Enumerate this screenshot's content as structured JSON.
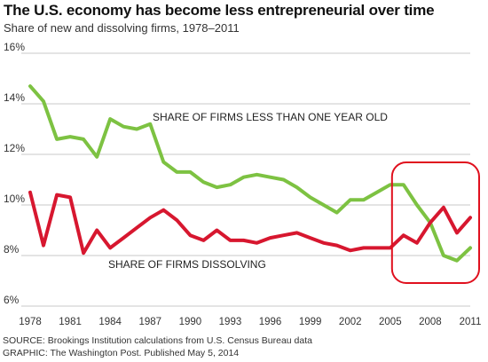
{
  "title": "The U.S. economy has become less entrepreneurial over time",
  "subtitle": "Share of new and dissolving firms, 1978–2011",
  "source": "SOURCE: Brookings Institution calculations from U.S. Census Bureau data",
  "credit": "GRAPHIC: The Washington Post. Published May 5, 2014",
  "colors": {
    "new_firms": "#7dc242",
    "dissolving": "#d7172f",
    "highlight": "#e0101e",
    "grid": "#c8c8c8"
  },
  "chart_data": {
    "type": "line",
    "xlim": [
      1978,
      2011
    ],
    "ylim": [
      6,
      16
    ],
    "grid": true,
    "x_ticks": [
      1978,
      1981,
      1984,
      1987,
      1990,
      1993,
      1996,
      1999,
      2002,
      2005,
      2008,
      2011
    ],
    "y_ticks": [
      6,
      8,
      10,
      12,
      14,
      16
    ],
    "y_tick_labels": [
      "6%",
      "8%",
      "10%",
      "12%",
      "14%",
      "16%"
    ],
    "x": [
      1978,
      1979,
      1980,
      1981,
      1982,
      1983,
      1984,
      1985,
      1986,
      1987,
      1988,
      1989,
      1990,
      1991,
      1992,
      1993,
      1994,
      1995,
      1996,
      1997,
      1998,
      1999,
      2000,
      2001,
      2002,
      2003,
      2004,
      2005,
      2006,
      2007,
      2008,
      2009,
      2010,
      2011
    ],
    "series": [
      {
        "name": "SHARE OF FIRMS LESS THAN ONE YEAR OLD",
        "values": [
          14.7,
          14.1,
          12.6,
          12.7,
          12.6,
          11.9,
          13.4,
          13.1,
          13.0,
          13.2,
          11.7,
          11.3,
          11.3,
          10.9,
          10.7,
          10.8,
          11.1,
          11.2,
          11.1,
          11.0,
          10.7,
          10.3,
          10.0,
          9.7,
          10.2,
          10.2,
          10.5,
          10.8,
          10.8,
          10.0,
          9.3,
          8.0,
          7.8,
          8.3
        ]
      },
      {
        "name": "SHARE OF FIRMS DISSOLVING",
        "values": [
          10.5,
          8.4,
          10.4,
          10.3,
          8.1,
          9.0,
          8.3,
          8.7,
          9.1,
          9.5,
          9.8,
          9.4,
          8.8,
          8.6,
          9.0,
          8.6,
          8.6,
          8.5,
          8.7,
          8.8,
          8.9,
          8.7,
          8.5,
          8.4,
          8.2,
          8.3,
          8.3,
          8.3,
          8.8,
          8.5,
          9.3,
          9.9,
          8.9,
          9.5
        ]
      }
    ],
    "highlight_range": [
      2005,
      2011
    ]
  }
}
